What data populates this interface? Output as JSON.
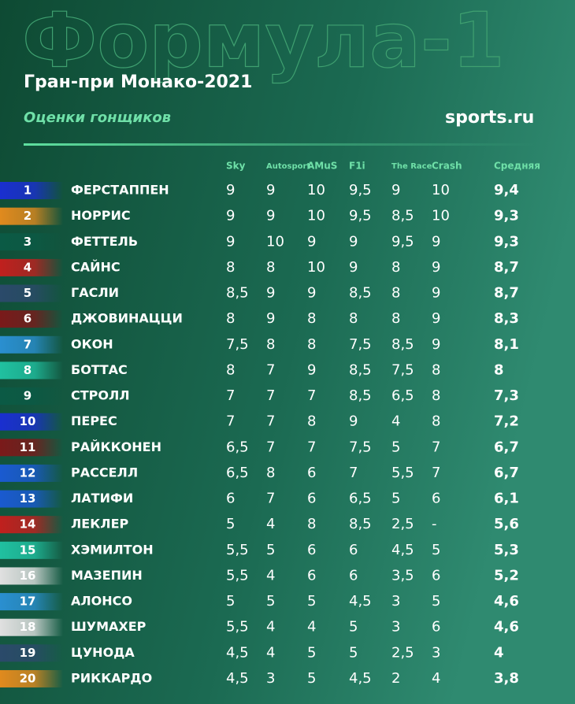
{
  "header": {
    "watermark": "Формула-1",
    "title": "Гран-при Монако-2021",
    "subtitle": "Оценки гонщиков",
    "logo": "sports.ru"
  },
  "table": {
    "columns": [
      "Sky",
      "Autosport",
      "AMuS",
      "F1i",
      "The Race",
      "Crash",
      "Средняя"
    ],
    "rows": [
      {
        "pos": 1,
        "name": "ФЕРСТАППЕН",
        "color": "#1a2fd0",
        "scores": [
          "9",
          "9",
          "10",
          "9,5",
          "9",
          "10",
          "9,4"
        ]
      },
      {
        "pos": 2,
        "name": "НОРРИС",
        "color": "#e08a1e",
        "scores": [
          "9",
          "9",
          "10",
          "9,5",
          "8,5",
          "10",
          "9,3"
        ]
      },
      {
        "pos": 3,
        "name": "ФЕТТЕЛЬ",
        "color": "#0b5a45",
        "scores": [
          "9",
          "10",
          "9",
          "9",
          "9,5",
          "9",
          "9,3"
        ]
      },
      {
        "pos": 4,
        "name": "САЙНС",
        "color": "#c0201e",
        "scores": [
          "8",
          "8",
          "10",
          "9",
          "8",
          "9",
          "8,7"
        ]
      },
      {
        "pos": 5,
        "name": "ГАСЛИ",
        "color": "#2b4a6a",
        "scores": [
          "8,5",
          "9",
          "9",
          "8,5",
          "8",
          "9",
          "8,7"
        ]
      },
      {
        "pos": 6,
        "name": "ДЖОВИНАЦЦИ",
        "color": "#7a1a1a",
        "scores": [
          "8",
          "9",
          "8",
          "8",
          "8",
          "9",
          "8,3"
        ]
      },
      {
        "pos": 7,
        "name": "ОКОН",
        "color": "#2a8fd0",
        "scores": [
          "7,5",
          "8",
          "8",
          "7,5",
          "8,5",
          "9",
          "8,1"
        ]
      },
      {
        "pos": 8,
        "name": "БОТТАС",
        "color": "#20c0a0",
        "scores": [
          "8",
          "7",
          "9",
          "8,5",
          "7,5",
          "8",
          "8"
        ]
      },
      {
        "pos": 9,
        "name": "СТРОЛЛ",
        "color": "#0b5a45",
        "scores": [
          "7",
          "7",
          "7",
          "8,5",
          "6,5",
          "8",
          "7,3"
        ]
      },
      {
        "pos": 10,
        "name": "ПЕРЕС",
        "color": "#1a2fd0",
        "scores": [
          "7",
          "7",
          "8",
          "9",
          "4",
          "8",
          "7,2"
        ]
      },
      {
        "pos": 11,
        "name": "РАЙККОНЕН",
        "color": "#7a1a1a",
        "scores": [
          "6,5",
          "7",
          "7",
          "7,5",
          "5",
          "7",
          "6,7"
        ]
      },
      {
        "pos": 12,
        "name": "РАССЕЛЛ",
        "color": "#1a5ad0",
        "scores": [
          "6,5",
          "8",
          "6",
          "7",
          "5,5",
          "7",
          "6,7"
        ]
      },
      {
        "pos": 13,
        "name": "ЛАТИФИ",
        "color": "#1a5ad0",
        "scores": [
          "6",
          "7",
          "6",
          "6,5",
          "5",
          "6",
          "6,1"
        ]
      },
      {
        "pos": 14,
        "name": "ЛЕКЛЕР",
        "color": "#c0201e",
        "scores": [
          "5",
          "4",
          "8",
          "8,5",
          "2,5",
          "-",
          "5,6"
        ]
      },
      {
        "pos": 15,
        "name": "ХЭМИЛТОН",
        "color": "#20c0a0",
        "scores": [
          "5,5",
          "5",
          "6",
          "6",
          "4,5",
          "5",
          "5,3"
        ]
      },
      {
        "pos": 16,
        "name": "МАЗЕПИН",
        "color": "#e0e0e0",
        "scores": [
          "5,5",
          "4",
          "6",
          "6",
          "3,5",
          "6",
          "5,2"
        ]
      },
      {
        "pos": 17,
        "name": "АЛОНСО",
        "color": "#2a8fd0",
        "scores": [
          "5",
          "5",
          "5",
          "4,5",
          "3",
          "5",
          "4,6"
        ]
      },
      {
        "pos": 18,
        "name": "ШУМАХЕР",
        "color": "#e0e0e0",
        "scores": [
          "5,5",
          "4",
          "4",
          "5",
          "3",
          "6",
          "4,6"
        ]
      },
      {
        "pos": 19,
        "name": "ЦУНОДА",
        "color": "#2b4a6a",
        "scores": [
          "4,5",
          "4",
          "5",
          "5",
          "2,5",
          "3",
          "4"
        ]
      },
      {
        "pos": 20,
        "name": "РИККАРДО",
        "color": "#e08a1e",
        "scores": [
          "4,5",
          "3",
          "5",
          "4,5",
          "2",
          "4",
          "3,8"
        ]
      }
    ]
  }
}
